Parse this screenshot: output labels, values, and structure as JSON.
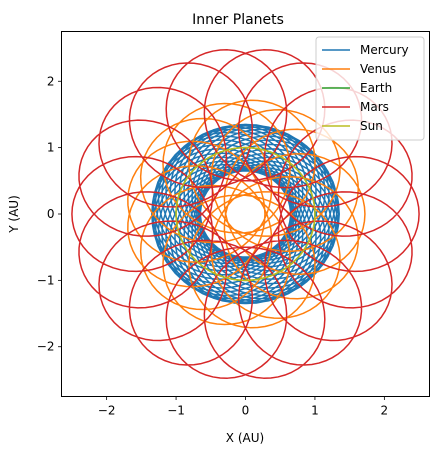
{
  "chart_data": {
    "type": "line",
    "title": "Inner Planets",
    "xlabel": "X (AU)",
    "ylabel": "Y (AU)",
    "xlim": [
      -2.65,
      2.65
    ],
    "ylim": [
      -2.75,
      2.75
    ],
    "x_ticks": [
      -2,
      -1,
      0,
      1,
      2
    ],
    "y_ticks": [
      -2,
      -1,
      0,
      1,
      2
    ],
    "x_tick_labels": [
      "−2",
      "−1",
      "0",
      "1",
      "2"
    ],
    "y_tick_labels": [
      "−2",
      "−1",
      "0",
      "1",
      "2"
    ],
    "grid": false,
    "legend_position": "top-right",
    "series": [
      {
        "name": "Mercury",
        "color": "#1f77b4",
        "base_radius": 1.0,
        "loop_radius": 0.35,
        "revolutions": 2,
        "loops": 33
      },
      {
        "name": "Venus",
        "color": "#ff7f0e",
        "base_radius": 1.0,
        "loop_radius": 0.72,
        "revolutions": 3,
        "loops": 12
      },
      {
        "name": "Earth",
        "color": "#2ca02c",
        "base_radius": 0.0,
        "loop_radius": 1.0,
        "revolutions": 1,
        "loops": 0
      },
      {
        "name": "Mars",
        "color": "#d62728",
        "base_radius": 1.0,
        "loop_radius": 1.5,
        "revolutions": 2,
        "loops": 17
      },
      {
        "name": "Sun",
        "color": "#bcbd22",
        "base_radius": 0.0,
        "loop_radius": 1.0,
        "revolutions": 1,
        "loops": 0
      }
    ]
  }
}
